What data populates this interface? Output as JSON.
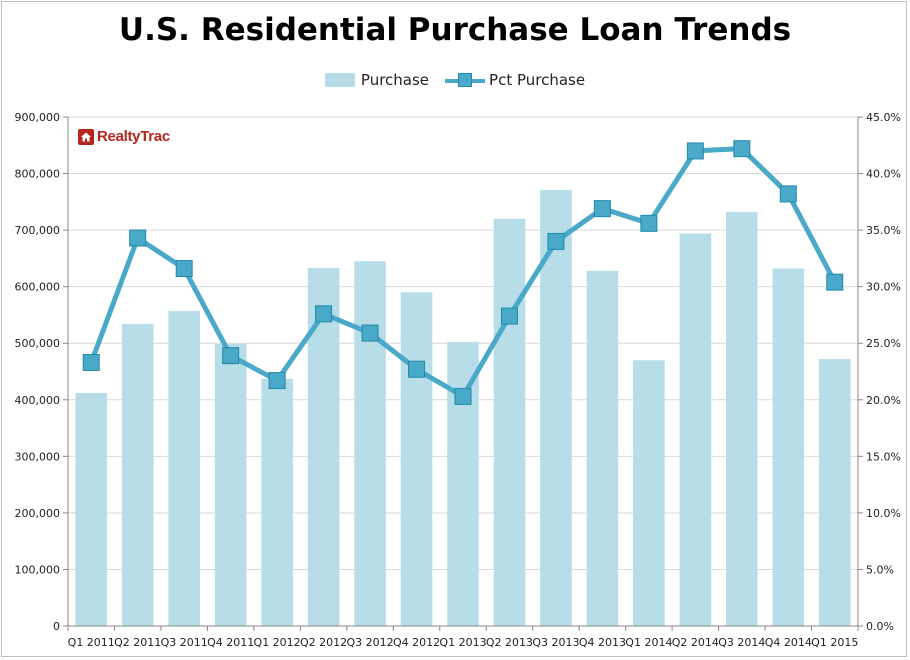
{
  "colors": {
    "bar": "#b7dde8",
    "line": "#4aa8c8",
    "marker": "#4aa8c8",
    "marker_edge": "#1f8aa8",
    "grid": "#d9d9d9",
    "logo_red": "#b5271e"
  },
  "logo": {
    "text": "RealtyTrac",
    "icon": "house-icon"
  },
  "chart_data": {
    "type": "bar",
    "title": "U.S. Residential Purchase Loan Trends",
    "categories": [
      "Q1 2011",
      "Q2 2011",
      "Q3 2011",
      "Q4 2011",
      "Q1 2012",
      "Q2 2012",
      "Q3 2012",
      "Q4 2012",
      "Q1 2013",
      "Q2 2013",
      "Q3 2013",
      "Q4 2013",
      "Q1 2014",
      "Q2 2014",
      "Q3 2014",
      "Q4 2014",
      "Q1 2015"
    ],
    "series": [
      {
        "name": "Purchase",
        "type": "bar",
        "axis": "left",
        "values": [
          412000,
          534000,
          557000,
          499000,
          437000,
          633000,
          645000,
          590000,
          502000,
          720000,
          771000,
          628000,
          470000,
          694000,
          732000,
          632000,
          472000
        ]
      },
      {
        "name": "Pct Purchase",
        "type": "line",
        "axis": "right",
        "values": [
          23.3,
          34.3,
          31.6,
          23.9,
          21.7,
          27.6,
          25.9,
          22.7,
          20.3,
          27.4,
          34.0,
          36.9,
          35.6,
          42.0,
          42.2,
          38.2,
          30.4
        ]
      }
    ],
    "y_left": {
      "min": 0,
      "max": 900000,
      "ticks": [
        "0",
        "100,000",
        "200,000",
        "300,000",
        "400,000",
        "500,000",
        "600,000",
        "700,000",
        "800,000",
        "900,000"
      ]
    },
    "y_right": {
      "min": 0,
      "max": 45,
      "ticks": [
        "0.0%",
        "5.0%",
        "10.0%",
        "15.0%",
        "20.0%",
        "25.0%",
        "30.0%",
        "35.0%",
        "40.0%",
        "45.0%"
      ]
    },
    "grid": true,
    "legend_position": "top"
  }
}
